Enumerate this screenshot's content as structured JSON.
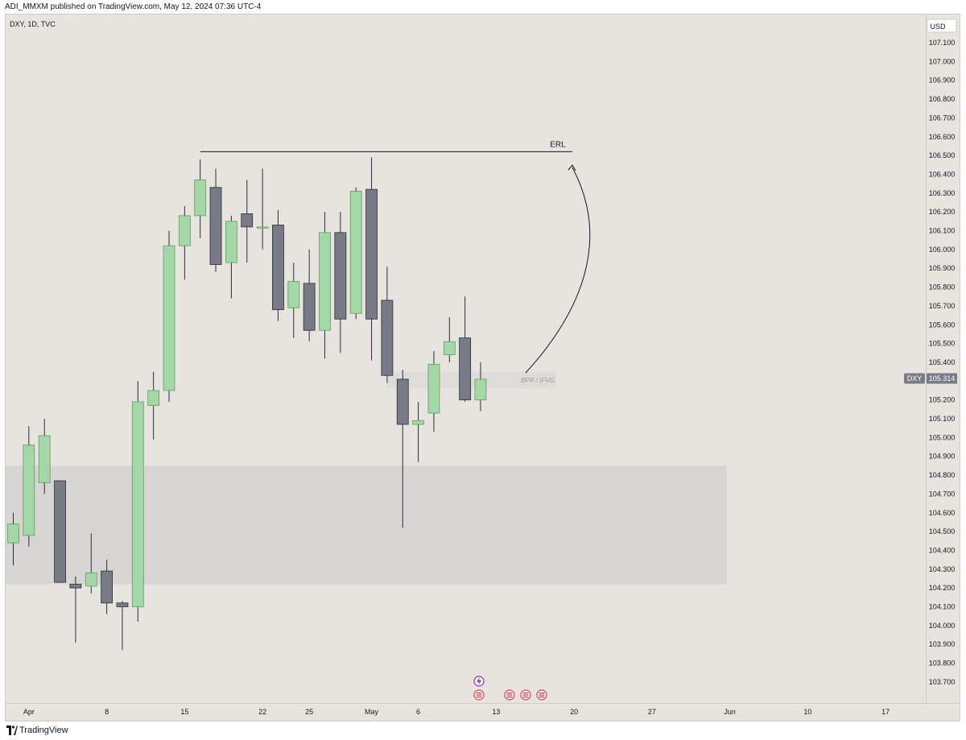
{
  "header": {
    "published_text": "ADI_MMXM published on TradingView.com, May 12, 2024 07:36 UTC-4"
  },
  "chart_header": {
    "symbol_line": "DXY, 1D, TVC"
  },
  "price_axis": {
    "currency": "USD",
    "ticks": [
      "107.100",
      "107.000",
      "106.900",
      "106.800",
      "106.700",
      "106.600",
      "106.500",
      "106.400",
      "106.300",
      "106.200",
      "106.100",
      "106.000",
      "105.900",
      "105.800",
      "105.700",
      "105.600",
      "105.500",
      "105.400",
      "105.300",
      "105.200",
      "105.100",
      "105.000",
      "104.900",
      "104.800",
      "104.700",
      "104.600",
      "104.500",
      "104.400",
      "104.300",
      "104.200",
      "104.100",
      "104.000",
      "103.900",
      "103.800",
      "103.700"
    ],
    "last_symbol": "DXY",
    "last_price": "105.314"
  },
  "time_axis": {
    "labels": [
      {
        "text": "Apr",
        "bar": 1
      },
      {
        "text": "8",
        "bar": 6
      },
      {
        "text": "15",
        "bar": 11
      },
      {
        "text": "22",
        "bar": 16
      },
      {
        "text": "25",
        "bar": 19
      },
      {
        "text": "May",
        "bar": 23
      },
      {
        "text": "6",
        "bar": 26
      },
      {
        "text": "13",
        "bar": 31
      },
      {
        "text": "20",
        "bar": 36
      },
      {
        "text": "27",
        "bar": 41
      },
      {
        "text": "Jun",
        "bar": 46
      },
      {
        "text": "10",
        "bar": 51
      },
      {
        "text": "17",
        "bar": 56
      }
    ]
  },
  "annotations": {
    "erl_label": "ERL",
    "bpr_label": "BPR / IFVG"
  },
  "colors": {
    "bull": "#a5d6a7",
    "bear": "#787b86",
    "background": "#e7e4df",
    "zone": "#d6d5d3",
    "line": "#131722",
    "event_purple": "#9c27b0",
    "event_red": "#f23645"
  },
  "chart_data": {
    "type": "candlestick",
    "symbol": "DXY",
    "interval": "1D",
    "ylim": [
      103.65,
      107.2
    ],
    "bars": [
      {
        "o": 104.44,
        "h": 104.6,
        "l": 104.32,
        "c": 104.54
      },
      {
        "o": 104.48,
        "h": 105.06,
        "l": 104.42,
        "c": 104.96
      },
      {
        "o": 104.76,
        "h": 105.1,
        "l": 104.7,
        "c": 105.01
      },
      {
        "o": 104.77,
        "h": 104.77,
        "l": 104.23,
        "c": 104.23
      },
      {
        "o": 104.22,
        "h": 104.26,
        "l": 103.91,
        "c": 104.2
      },
      {
        "o": 104.21,
        "h": 104.49,
        "l": 104.17,
        "c": 104.28
      },
      {
        "o": 104.29,
        "h": 104.35,
        "l": 104.06,
        "c": 104.12
      },
      {
        "o": 104.12,
        "h": 104.13,
        "l": 103.87,
        "c": 104.1
      },
      {
        "o": 104.1,
        "h": 105.3,
        "l": 104.02,
        "c": 105.19
      },
      {
        "o": 105.17,
        "h": 105.35,
        "l": 104.99,
        "c": 105.25
      },
      {
        "o": 105.25,
        "h": 106.1,
        "l": 105.19,
        "c": 106.02
      },
      {
        "o": 106.02,
        "h": 106.23,
        "l": 105.84,
        "c": 106.18
      },
      {
        "o": 106.18,
        "h": 106.48,
        "l": 106.06,
        "c": 106.37
      },
      {
        "o": 106.33,
        "h": 106.43,
        "l": 105.88,
        "c": 105.92
      },
      {
        "o": 105.93,
        "h": 106.18,
        "l": 105.74,
        "c": 106.15
      },
      {
        "o": 106.19,
        "h": 106.37,
        "l": 105.93,
        "c": 106.12
      },
      {
        "o": 106.12,
        "h": 106.43,
        "l": 106.0,
        "c": 106.12
      },
      {
        "o": 106.13,
        "h": 106.21,
        "l": 105.62,
        "c": 105.68
      },
      {
        "o": 105.69,
        "h": 105.93,
        "l": 105.53,
        "c": 105.83
      },
      {
        "o": 105.82,
        "h": 106.0,
        "l": 105.51,
        "c": 105.57
      },
      {
        "o": 105.57,
        "h": 106.2,
        "l": 105.42,
        "c": 106.09
      },
      {
        "o": 106.09,
        "h": 106.2,
        "l": 105.45,
        "c": 105.63
      },
      {
        "o": 105.66,
        "h": 106.33,
        "l": 105.63,
        "c": 106.31
      },
      {
        "o": 106.32,
        "h": 106.49,
        "l": 105.41,
        "c": 105.63
      },
      {
        "o": 105.73,
        "h": 105.91,
        "l": 105.29,
        "c": 105.33
      },
      {
        "o": 105.31,
        "h": 105.36,
        "l": 104.52,
        "c": 105.07
      },
      {
        "o": 105.07,
        "h": 105.19,
        "l": 104.87,
        "c": 105.09
      },
      {
        "o": 105.13,
        "h": 105.46,
        "l": 105.03,
        "c": 105.39
      },
      {
        "o": 105.44,
        "h": 105.64,
        "l": 105.4,
        "c": 105.51
      },
      {
        "o": 105.53,
        "h": 105.75,
        "l": 105.19,
        "c": 105.2
      },
      {
        "o": 105.2,
        "h": 105.4,
        "l": 105.14,
        "c": 105.31
      }
    ]
  }
}
